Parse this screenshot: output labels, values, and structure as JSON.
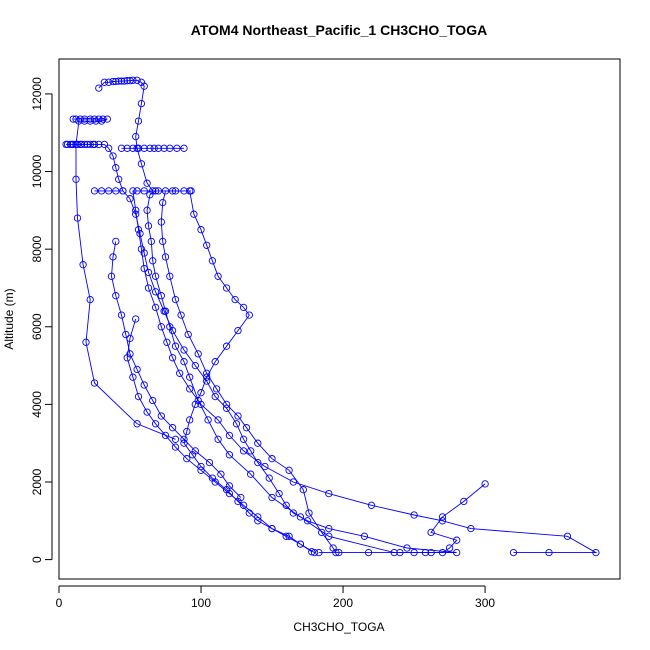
{
  "chart_data": {
    "type": "line",
    "title": "ATOM4 Northeast_Pacific_1 CH3CHO_TOGA",
    "xlabel": "CH3CHO_TOGA",
    "ylabel": "Altitude (m)",
    "xlim": [
      0,
      395
    ],
    "ylim": [
      -500,
      12900
    ],
    "xticks": [
      0,
      100,
      200,
      300
    ],
    "yticks": [
      0,
      2000,
      4000,
      6000,
      8000,
      10000,
      12000
    ],
    "grid": false,
    "legend": "none",
    "marker": "open-circle",
    "series_color": "#0000FF",
    "series": [
      {
        "points": [
          [
            183,
            180
          ],
          [
            197,
            180
          ],
          [
            218,
            180
          ],
          [
            240,
            180
          ],
          [
            258,
            180
          ],
          [
            280,
            180
          ],
          [
            245,
            300
          ],
          [
            215,
            600
          ],
          [
            190,
            800
          ],
          [
            175,
            1000
          ],
          [
            165,
            1200
          ],
          [
            160,
            1400
          ],
          [
            155,
            1700
          ],
          [
            148,
            2100
          ],
          [
            140,
            2500
          ],
          [
            135,
            2800
          ],
          [
            130,
            3100
          ],
          [
            125,
            3500
          ],
          [
            118,
            3900
          ],
          [
            110,
            4200
          ],
          [
            104,
            4600
          ],
          [
            96,
            5000
          ],
          [
            88,
            5400
          ],
          [
            80,
            5900
          ],
          [
            74,
            6400
          ],
          [
            68,
            6900
          ],
          [
            63,
            7400
          ],
          [
            60,
            7900
          ],
          [
            57,
            8400
          ],
          [
            54,
            8900
          ],
          [
            50,
            9300
          ],
          [
            45,
            9500
          ],
          [
            40,
            9500
          ],
          [
            35,
            9500
          ],
          [
            30,
            9500
          ],
          [
            25,
            9500
          ]
        ]
      },
      {
        "points": [
          [
            320,
            180
          ],
          [
            345,
            180
          ],
          [
            378,
            180
          ],
          [
            358,
            600
          ],
          [
            290,
            800
          ],
          [
            270,
            1000
          ],
          [
            250,
            1150
          ],
          [
            220,
            1400
          ],
          [
            190,
            1700
          ],
          [
            165,
            2000
          ],
          [
            145,
            2400
          ],
          [
            130,
            2800
          ],
          [
            120,
            3200
          ],
          [
            112,
            3600
          ],
          [
            100,
            4000
          ],
          [
            92,
            4400
          ],
          [
            85,
            4800
          ],
          [
            80,
            5200
          ],
          [
            76,
            5600
          ],
          [
            72,
            6000
          ],
          [
            68,
            6500
          ],
          [
            63,
            7000
          ],
          [
            60,
            7500
          ],
          [
            58,
            8000
          ],
          [
            56,
            8500
          ],
          [
            54,
            9000
          ],
          [
            52,
            9500
          ],
          [
            55,
            9500
          ],
          [
            60,
            9500
          ],
          [
            70,
            9500
          ],
          [
            80,
            9500
          ],
          [
            93,
            9500
          ]
        ]
      },
      {
        "points": [
          [
            300,
            1950
          ],
          [
            285,
            1500
          ],
          [
            270,
            1100
          ],
          [
            262,
            700
          ],
          [
            280,
            500
          ],
          [
            275,
            300
          ],
          [
            270,
            180
          ],
          [
            262,
            180
          ],
          [
            250,
            180
          ],
          [
            236,
            180
          ],
          [
            190,
            600
          ],
          [
            170,
            1100
          ],
          [
            150,
            1600
          ],
          [
            135,
            2200
          ],
          [
            120,
            2700
          ],
          [
            112,
            3100
          ],
          [
            105,
            3600
          ],
          [
            98,
            4100
          ],
          [
            92,
            4700
          ],
          [
            88,
            5100
          ],
          [
            82,
            5500
          ],
          [
            78,
            6000
          ],
          [
            75,
            6400
          ],
          [
            72,
            6800
          ],
          [
            68,
            7300
          ],
          [
            66,
            7700
          ],
          [
            65,
            8200
          ],
          [
            63,
            8600
          ],
          [
            62,
            9000
          ],
          [
            64,
            9400
          ],
          [
            68,
            9500
          ]
        ]
      },
      {
        "points": [
          [
            195,
            180
          ],
          [
            193,
            300
          ],
          [
            185,
            700
          ],
          [
            176,
            1200
          ],
          [
            172,
            1800
          ],
          [
            162,
            2300
          ],
          [
            150,
            2600
          ],
          [
            140,
            3000
          ],
          [
            132,
            3400
          ],
          [
            126,
            3700
          ],
          [
            118,
            4000
          ],
          [
            111,
            4400
          ],
          [
            104,
            4800
          ],
          [
            98,
            5300
          ],
          [
            91,
            5800
          ],
          [
            86,
            6300
          ],
          [
            82,
            6700
          ],
          [
            78,
            7300
          ],
          [
            75,
            7800
          ],
          [
            73,
            8200
          ],
          [
            72,
            8700
          ],
          [
            73,
            9200
          ],
          [
            75,
            9500
          ],
          [
            82,
            9500
          ],
          [
            88,
            9500
          ]
        ]
      },
      {
        "points": [
          [
            45,
            9500
          ],
          [
            42,
            9800
          ],
          [
            40,
            10100
          ],
          [
            38,
            10400
          ],
          [
            35,
            10600
          ],
          [
            32,
            10700
          ],
          [
            28,
            10700
          ],
          [
            25,
            10700
          ],
          [
            22,
            10700
          ],
          [
            18,
            10700
          ],
          [
            15,
            10700
          ],
          [
            12,
            10700
          ],
          [
            9,
            10700
          ],
          [
            6,
            10700
          ],
          [
            5,
            10700
          ],
          [
            8,
            10700
          ],
          [
            10,
            10700
          ],
          [
            13,
            10700
          ],
          [
            16,
            10700
          ],
          [
            20,
            10700
          ],
          [
            24,
            10700
          ]
        ]
      },
      {
        "points": [
          [
            10,
            11350
          ],
          [
            12,
            11350
          ],
          [
            15,
            11350
          ],
          [
            18,
            11350
          ],
          [
            22,
            11350
          ],
          [
            25,
            11350
          ],
          [
            28,
            11350
          ],
          [
            31,
            11350
          ],
          [
            34,
            11350
          ],
          [
            30,
            11300
          ],
          [
            26,
            11300
          ],
          [
            22,
            11300
          ],
          [
            18,
            11300
          ],
          [
            14,
            11300
          ],
          [
            12,
            10700
          ],
          [
            12,
            9800
          ],
          [
            13,
            8800
          ],
          [
            17,
            7600
          ],
          [
            22,
            6700
          ],
          [
            19,
            5600
          ],
          [
            25,
            4550
          ],
          [
            55,
            3500
          ],
          [
            82,
            3100
          ]
        ]
      },
      {
        "points": [
          [
            28,
            12150
          ],
          [
            32,
            12300
          ],
          [
            35,
            12300
          ],
          [
            38,
            12320
          ],
          [
            40,
            12320
          ],
          [
            42,
            12330
          ],
          [
            44,
            12330
          ],
          [
            46,
            12330
          ],
          [
            48,
            12340
          ],
          [
            50,
            12340
          ],
          [
            52,
            12350
          ],
          [
            55,
            12350
          ],
          [
            58,
            12300
          ],
          [
            60,
            12200
          ],
          [
            58,
            11750
          ],
          [
            56,
            11300
          ],
          [
            54,
            10900
          ],
          [
            55,
            10600
          ],
          [
            58,
            10200
          ],
          [
            62,
            9700
          ],
          [
            66,
            9500
          ]
        ]
      },
      {
        "points": [
          [
            88,
            10600
          ],
          [
            83,
            10600
          ],
          [
            78,
            10600
          ],
          [
            74,
            10600
          ],
          [
            70,
            10600
          ],
          [
            67,
            10600
          ],
          [
            64,
            10600
          ],
          [
            60,
            10600
          ],
          [
            56,
            10600
          ],
          [
            52,
            10600
          ],
          [
            48,
            10600
          ],
          [
            44,
            10600
          ]
        ]
      },
      {
        "points": [
          [
            92,
            9500
          ],
          [
            95,
            8900
          ],
          [
            100,
            8500
          ],
          [
            104,
            8100
          ],
          [
            108,
            7700
          ],
          [
            112,
            7300
          ],
          [
            118,
            7000
          ],
          [
            124,
            6700
          ],
          [
            130,
            6500
          ],
          [
            134,
            6300
          ],
          [
            126,
            5900
          ],
          [
            118,
            5500
          ],
          [
            110,
            5100
          ],
          [
            104,
            4700
          ],
          [
            100,
            4300
          ],
          [
            96,
            4000
          ],
          [
            92,
            3600
          ],
          [
            90,
            3300
          ],
          [
            88,
            3000
          ],
          [
            94,
            2700
          ],
          [
            100,
            2400
          ],
          [
            108,
            2100
          ],
          [
            118,
            1800
          ],
          [
            126,
            1500
          ],
          [
            134,
            1200
          ],
          [
            140,
            1000
          ],
          [
            150,
            800
          ],
          [
            162,
            600
          ],
          [
            170,
            400
          ],
          [
            178,
            200
          ]
        ]
      },
      {
        "points": [
          [
            54,
            6200
          ],
          [
            50,
            5700
          ],
          [
            48,
            5200
          ],
          [
            52,
            4700
          ],
          [
            56,
            4200
          ],
          [
            62,
            3800
          ],
          [
            68,
            3500
          ],
          [
            75,
            3200
          ],
          [
            82,
            2900
          ],
          [
            90,
            2600
          ],
          [
            100,
            2300
          ],
          [
            110,
            2000
          ],
          [
            120,
            1700
          ],
          [
            130,
            1400
          ],
          [
            140,
            1100
          ],
          [
            150,
            800
          ],
          [
            160,
            600
          ],
          [
            170,
            400
          ],
          [
            180,
            180
          ]
        ]
      },
      {
        "points": [
          [
            40,
            8200
          ],
          [
            38,
            7800
          ],
          [
            37,
            7300
          ],
          [
            40,
            6800
          ],
          [
            44,
            6300
          ],
          [
            47,
            5800
          ],
          [
            50,
            5300
          ],
          [
            55,
            4900
          ],
          [
            60,
            4500
          ],
          [
            66,
            4100
          ],
          [
            72,
            3700
          ],
          [
            80,
            3400
          ],
          [
            88,
            3100
          ],
          [
            96,
            2800
          ],
          [
            106,
            2500
          ],
          [
            114,
            2200
          ],
          [
            120,
            1900
          ],
          [
            128,
            1600
          ]
        ]
      }
    ]
  }
}
